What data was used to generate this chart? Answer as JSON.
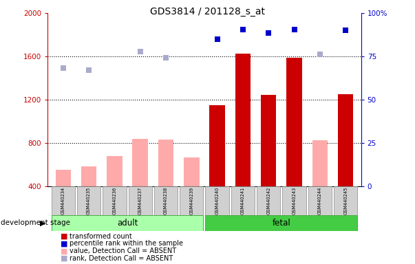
{
  "title": "GDS3814 / 201128_s_at",
  "samples": [
    "GSM440234",
    "GSM440235",
    "GSM440236",
    "GSM440237",
    "GSM440238",
    "GSM440239",
    "GSM440240",
    "GSM440241",
    "GSM440242",
    "GSM440243",
    "GSM440244",
    "GSM440245"
  ],
  "absent_values": [
    550,
    580,
    680,
    840,
    830,
    665,
    null,
    null,
    null,
    null,
    825,
    null
  ],
  "present_values": [
    null,
    null,
    null,
    null,
    null,
    null,
    1150,
    1625,
    1245,
    1585,
    null,
    1248
  ],
  "absent_ranks": [
    1490,
    1475,
    null,
    1645,
    1590,
    null,
    null,
    null,
    null,
    null,
    1618,
    null
  ],
  "present_ranks": [
    null,
    null,
    null,
    null,
    null,
    null,
    1760,
    1848,
    1818,
    1848,
    null,
    1845
  ],
  "left_ylim": [
    400,
    2000
  ],
  "right_ylim": [
    0,
    100
  ],
  "left_yticks": [
    400,
    800,
    1200,
    1600,
    2000
  ],
  "right_yticks": [
    0,
    25,
    50,
    75,
    100
  ],
  "left_color": "#cc0000",
  "right_color": "#0000cc",
  "bar_absent_color": "#ffaaaa",
  "bar_present_color": "#cc0000",
  "rank_absent_color": "#aaaacc",
  "rank_present_color": "#0000cc",
  "adult_bg": "#aaffaa",
  "fetal_bg": "#44cc44",
  "sample_bg": "#d0d0d0",
  "dotted_lines": [
    800,
    1200,
    1600
  ],
  "bar_width": 0.6,
  "legend_items": [
    {
      "color": "#cc0000",
      "label": "transformed count"
    },
    {
      "color": "#0000cc",
      "label": "percentile rank within the sample"
    },
    {
      "color": "#ffaaaa",
      "label": "value, Detection Call = ABSENT"
    },
    {
      "color": "#aaaacc",
      "label": "rank, Detection Call = ABSENT"
    }
  ]
}
